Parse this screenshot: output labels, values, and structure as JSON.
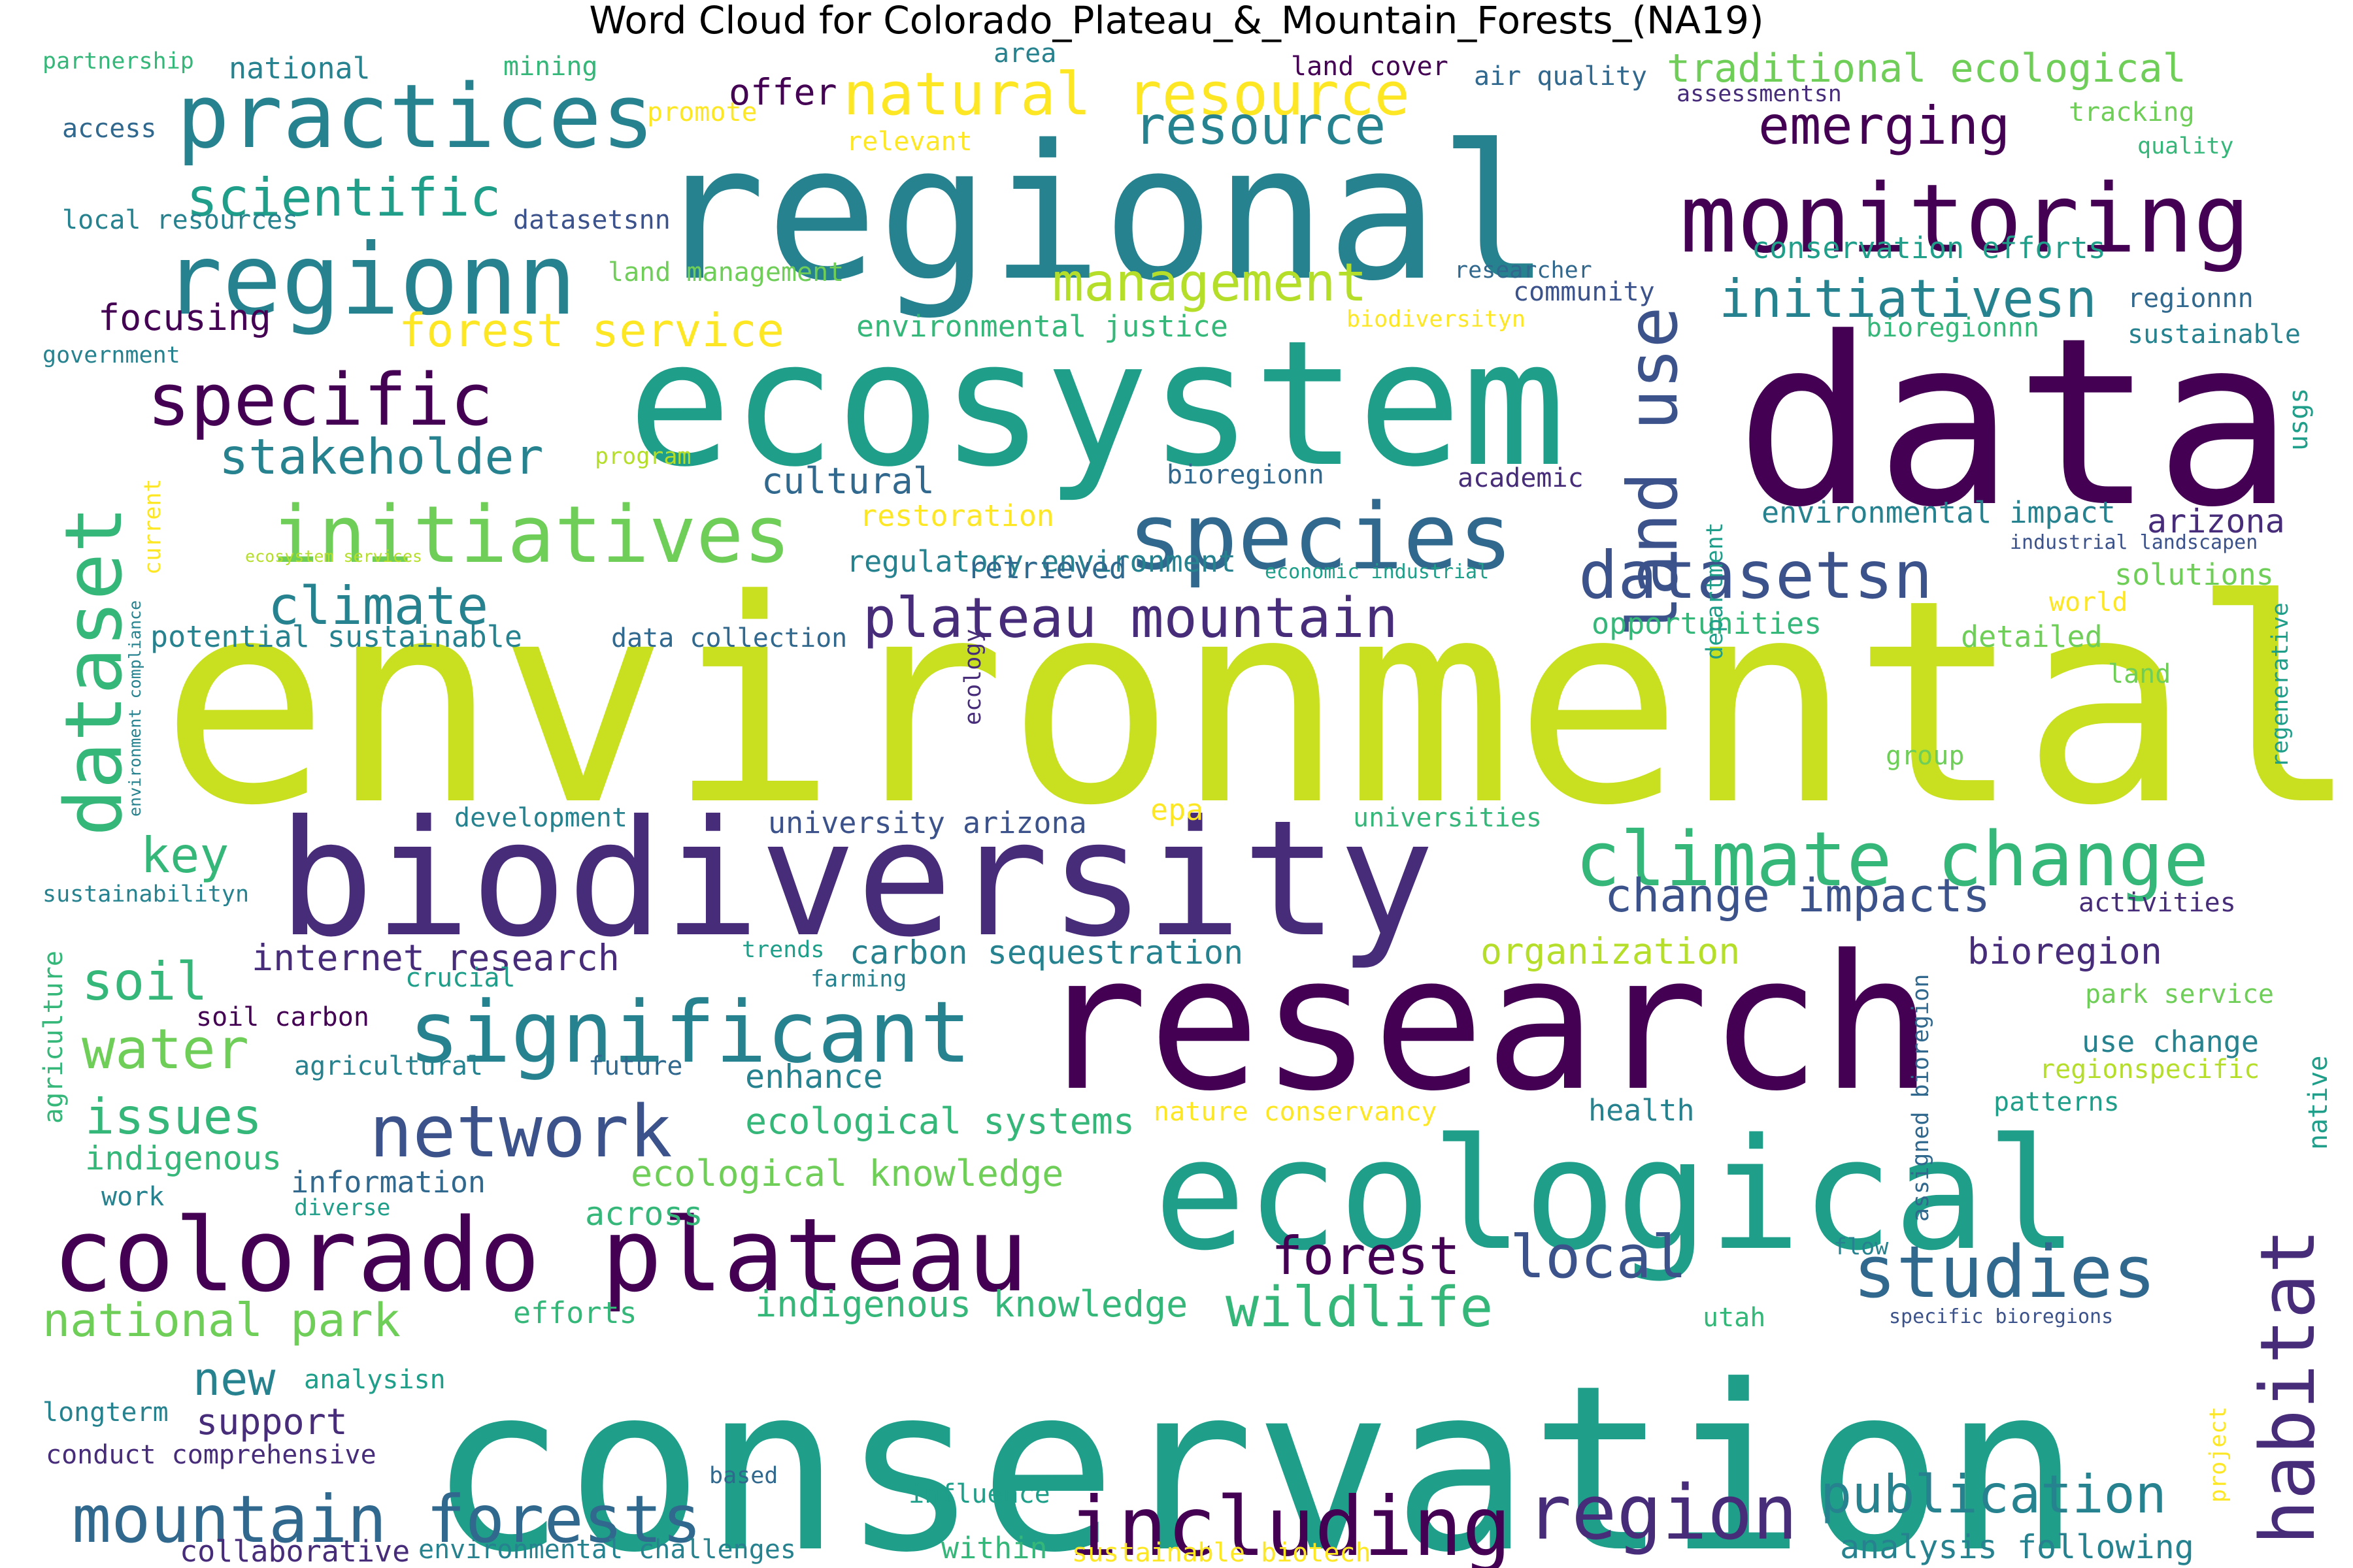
{
  "title": "Word Cloud for Colorado_Plateau_&_Mountain_Forests_(NA19)",
  "palette": {
    "dp": "#440154",
    "ip": "#472c7a",
    "sb": "#3b528b",
    "bl": "#31688e",
    "tl": "#26828e",
    "tg": "#1f9e89",
    "gr": "#35b779",
    "lg": "#6ece58",
    "yg": "#b5de2b",
    "ly": "#c8e020",
    "yl": "#fde725"
  },
  "words": [
    {
      "text": "environmental",
      "color": "ly"
    },
    {
      "text": "conservation",
      "color": "tg"
    },
    {
      "text": "data",
      "color": "dp"
    },
    {
      "text": "research",
      "color": "dp"
    },
    {
      "text": "ecosystem",
      "color": "tg"
    },
    {
      "text": "regional",
      "color": "tl"
    },
    {
      "text": "biodiversity",
      "color": "ip"
    },
    {
      "text": "ecological",
      "color": "tg"
    },
    {
      "text": "colorado plateau",
      "color": "dp"
    },
    {
      "text": "monitoring",
      "color": "dp"
    },
    {
      "text": "regionn",
      "color": "tl"
    },
    {
      "text": "practices",
      "color": "tl"
    },
    {
      "text": "species",
      "color": "bl"
    },
    {
      "text": "significant",
      "color": "tl"
    },
    {
      "text": "initiatives",
      "color": "lg"
    },
    {
      "text": "network",
      "color": "sb"
    },
    {
      "text": "climate change",
      "color": "gr"
    },
    {
      "text": "including",
      "color": "dp"
    },
    {
      "text": "region",
      "color": "ip"
    },
    {
      "text": "mountain forests",
      "color": "bl"
    },
    {
      "text": "studies",
      "color": "bl"
    },
    {
      "text": "datasetsn",
      "color": "sb"
    },
    {
      "text": "specific",
      "color": "dp"
    },
    {
      "text": "plateau mountain",
      "color": "ip"
    },
    {
      "text": "natural resource",
      "color": "yl"
    },
    {
      "text": "scientific",
      "color": "tg"
    },
    {
      "text": "habitat",
      "color": "ip"
    },
    {
      "text": "land use",
      "color": "sb"
    },
    {
      "text": "dataset",
      "color": "gr"
    },
    {
      "text": "stakeholder",
      "color": "tl"
    },
    {
      "text": "climate",
      "color": "tl"
    },
    {
      "text": "management",
      "color": "yg"
    },
    {
      "text": "resource",
      "color": "tl"
    },
    {
      "text": "emerging",
      "color": "dp"
    },
    {
      "text": "initiativesn",
      "color": "tl"
    },
    {
      "text": "publication",
      "color": "tl"
    },
    {
      "text": "forest service",
      "color": "yl"
    },
    {
      "text": "local",
      "color": "sb"
    },
    {
      "text": "wildlife",
      "color": "gr"
    },
    {
      "text": "forest",
      "color": "dp"
    },
    {
      "text": "change impacts",
      "color": "sb"
    },
    {
      "text": "national park",
      "color": "lg"
    },
    {
      "text": "traditional ecological",
      "color": "lg"
    },
    {
      "text": "soil",
      "color": "gr"
    },
    {
      "text": "water",
      "color": "lg"
    },
    {
      "text": "issues",
      "color": "gr"
    },
    {
      "text": "key",
      "color": "gr"
    },
    {
      "text": "new",
      "color": "tl"
    },
    {
      "text": "ecological knowledge",
      "color": "lg"
    },
    {
      "text": "internet research",
      "color": "ip"
    },
    {
      "text": "ecological systems",
      "color": "gr"
    },
    {
      "text": "indigenous knowledge",
      "color": "gr"
    },
    {
      "text": "carbon sequestration",
      "color": "tl"
    },
    {
      "text": "organization",
      "color": "yg"
    },
    {
      "text": "bioregion",
      "color": "ip"
    },
    {
      "text": "cultural",
      "color": "bl"
    },
    {
      "text": "focusing",
      "color": "dp"
    },
    {
      "text": "offer",
      "color": "dp"
    },
    {
      "text": "support",
      "color": "ip"
    },
    {
      "text": "enhance",
      "color": "tl"
    },
    {
      "text": "analysis following",
      "color": "tl"
    },
    {
      "text": "potential sustainable",
      "color": "tl"
    },
    {
      "text": "indigenous",
      "color": "gr"
    },
    {
      "text": "across",
      "color": "gr"
    },
    {
      "text": "university arizona",
      "color": "sb"
    },
    {
      "text": "regulatory environment",
      "color": "tl"
    },
    {
      "text": "conservation efforts",
      "color": "tg"
    },
    {
      "text": "arizona",
      "color": "ip"
    },
    {
      "text": "environmental impact",
      "color": "tl"
    },
    {
      "text": "use change",
      "color": "tl"
    },
    {
      "text": "information",
      "color": "bl"
    },
    {
      "text": "retrieved",
      "color": "bl"
    },
    {
      "text": "opportunities",
      "color": "gr"
    },
    {
      "text": "solutions",
      "color": "lg"
    },
    {
      "text": "efforts",
      "color": "gr"
    },
    {
      "text": "detailed",
      "color": "lg"
    },
    {
      "text": "land cover",
      "color": "dp"
    },
    {
      "text": "air quality",
      "color": "bl"
    },
    {
      "text": "assessmentsn",
      "color": "ip"
    },
    {
      "text": "community",
      "color": "sb"
    },
    {
      "text": "academic",
      "color": "ip"
    },
    {
      "text": "bioregionn",
      "color": "bl"
    },
    {
      "text": "regionnn",
      "color": "bl"
    },
    {
      "text": "bioregionnn",
      "color": "gr"
    },
    {
      "text": "sustainable",
      "color": "tl"
    },
    {
      "text": "researcher",
      "color": "bl"
    },
    {
      "text": "biodiversityn",
      "color": "yl"
    },
    {
      "text": "environmental justice",
      "color": "gr"
    },
    {
      "text": "land management",
      "color": "lg"
    },
    {
      "text": "restoration",
      "color": "yl"
    },
    {
      "text": "data collection",
      "color": "bl"
    },
    {
      "text": "development",
      "color": "tl"
    },
    {
      "text": "universities",
      "color": "gr"
    },
    {
      "text": "epa",
      "color": "yl"
    },
    {
      "text": "activities",
      "color": "ip"
    },
    {
      "text": "park service",
      "color": "lg"
    },
    {
      "text": "health",
      "color": "tl"
    },
    {
      "text": "patterns",
      "color": "tg"
    },
    {
      "text": "regionspecific",
      "color": "yg"
    },
    {
      "text": "nature conservancy",
      "color": "yl"
    },
    {
      "text": "crucial",
      "color": "tg"
    },
    {
      "text": "trends",
      "color": "tg"
    },
    {
      "text": "farming",
      "color": "tl"
    },
    {
      "text": "soil carbon",
      "color": "dp"
    },
    {
      "text": "agricultural",
      "color": "tl"
    },
    {
      "text": "future",
      "color": "bl"
    },
    {
      "text": "diverse",
      "color": "tg"
    },
    {
      "text": "work",
      "color": "tl"
    },
    {
      "text": "flow",
      "color": "tl"
    },
    {
      "text": "utah",
      "color": "gr"
    },
    {
      "text": "specific bioregions",
      "color": "sb"
    },
    {
      "text": "analysisn",
      "color": "tg"
    },
    {
      "text": "longterm",
      "color": "tl"
    },
    {
      "text": "conduct comprehensive",
      "color": "ip"
    },
    {
      "text": "based",
      "color": "bl"
    },
    {
      "text": "influence",
      "color": "tg"
    },
    {
      "text": "collaborative",
      "color": "ip"
    },
    {
      "text": "environmental challenges",
      "color": "tl"
    },
    {
      "text": "within",
      "color": "gr"
    },
    {
      "text": "sustainable biotech",
      "color": "yl"
    },
    {
      "text": "partnership",
      "color": "gr"
    },
    {
      "text": "national",
      "color": "tl"
    },
    {
      "text": "mining",
      "color": "gr"
    },
    {
      "text": "area",
      "color": "tl"
    },
    {
      "text": "promote",
      "color": "yl"
    },
    {
      "text": "relevant",
      "color": "yl"
    },
    {
      "text": "access",
      "color": "bl"
    },
    {
      "text": "local resources",
      "color": "tl"
    },
    {
      "text": "datasetsnn",
      "color": "sb"
    },
    {
      "text": "government",
      "color": "tl"
    },
    {
      "text": "program",
      "color": "yg"
    },
    {
      "text": "current",
      "color": "yl"
    },
    {
      "text": "ecosystem services",
      "color": "yg"
    },
    {
      "text": "tracking",
      "color": "lg"
    },
    {
      "text": "quality",
      "color": "gr"
    },
    {
      "text": "world",
      "color": "yl"
    },
    {
      "text": "land",
      "color": "lg"
    },
    {
      "text": "group",
      "color": "lg"
    },
    {
      "text": "industrial landscapen",
      "color": "sb"
    },
    {
      "text": "economic industrial",
      "color": "tg"
    },
    {
      "text": "sustainabilityn",
      "color": "tl"
    },
    {
      "text": "environment compliance",
      "color": "tl"
    },
    {
      "text": "department",
      "color": "tg"
    },
    {
      "text": "ecology",
      "color": "ip"
    },
    {
      "text": "usgs",
      "color": "tg"
    },
    {
      "text": "regenerative",
      "color": "tg"
    },
    {
      "text": "native",
      "color": "tg"
    },
    {
      "text": "agriculture",
      "color": "gr"
    },
    {
      "text": "assigned bioregion",
      "color": "bl"
    },
    {
      "text": "project",
      "color": "yl"
    }
  ]
}
